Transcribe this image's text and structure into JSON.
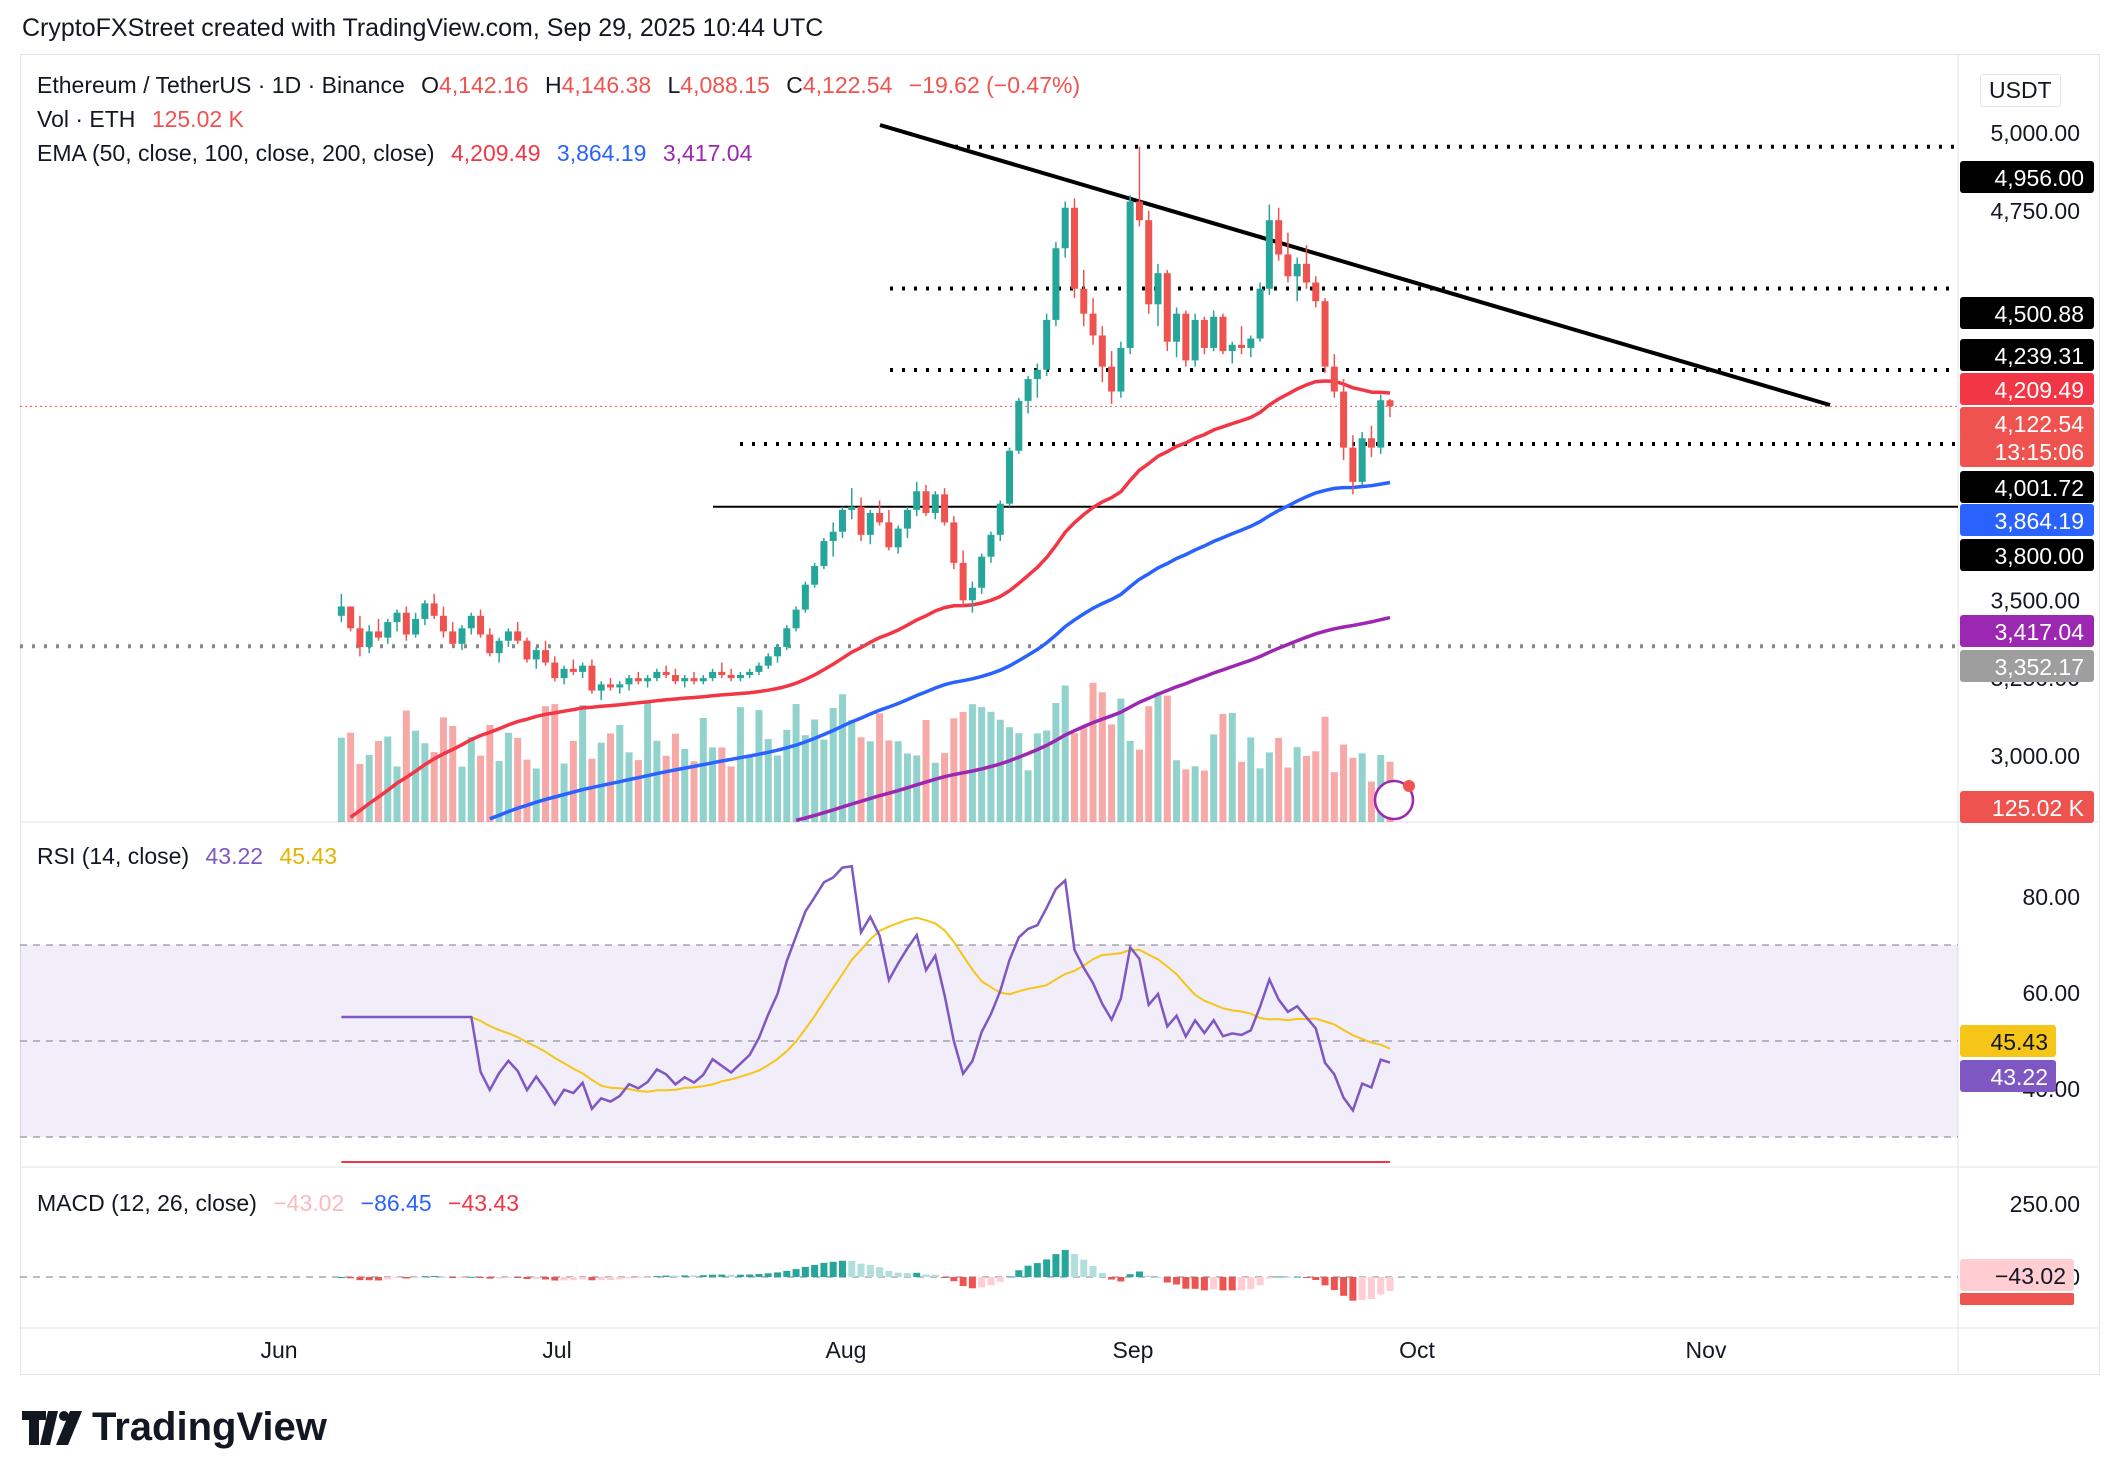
{
  "header": {
    "credit": "CryptoFXStreet created with TradingView.com, Sep 29, 2025 10:44 UTC"
  },
  "legend": {
    "symbol": "Ethereum / TetherUS · 1D · Binance",
    "o_label": "O",
    "o": "4,142.16",
    "h_label": "H",
    "h": "4,146.38",
    "l_label": "L",
    "l": "4,088.15",
    "c_label": "C",
    "c": "4,122.54",
    "change": "−19.62 (−0.47%)",
    "vol_label": "Vol · ETH",
    "vol": "125.02 K",
    "ema_label": "EMA (50, close, 100, close, 200, close)",
    "ema50": "4,209.49",
    "ema100": "3,864.19",
    "ema200": "3,417.04"
  },
  "currency": "USDT",
  "colors": {
    "up": "#26a69a",
    "down": "#ef5350",
    "ema50": "#f23645",
    "ema100": "#2962ff",
    "ema200": "#9c27b0",
    "rsi": "#7e57c2",
    "rsi_ma": "#f5c518"
  },
  "price_axis": {
    "ticks": [
      "5,000.00",
      "4,750.00",
      "3,500.00",
      "3,250.00",
      "3,000.00"
    ]
  },
  "price_tags": [
    {
      "text": "4,956.00",
      "bg": "#000000",
      "fg": "#ffffff"
    },
    {
      "text": "4,500.88",
      "bg": "#000000",
      "fg": "#ffffff"
    },
    {
      "text": "4,239.31",
      "bg": "#000000",
      "fg": "#ffffff"
    },
    {
      "text": "4,209.49",
      "bg": "#f23645",
      "fg": "#ffffff"
    },
    {
      "text": "4,122.54",
      "bg": "#ef5350",
      "fg": "#ffffff"
    },
    {
      "text": "13:15:06",
      "bg": "#ef5350",
      "fg": "#ffffff"
    },
    {
      "text": "4,001.72",
      "bg": "#000000",
      "fg": "#ffffff"
    },
    {
      "text": "3,864.19",
      "bg": "#2962ff",
      "fg": "#ffffff"
    },
    {
      "text": "3,800.00",
      "bg": "#000000",
      "fg": "#ffffff"
    },
    {
      "text": "3,417.04",
      "bg": "#9c27b0",
      "fg": "#ffffff"
    },
    {
      "text": "3,352.17",
      "bg": "#9e9e9e",
      "fg": "#ffffff"
    },
    {
      "text": "125.02 K",
      "bg": "#ef5350",
      "fg": "#ffffff"
    }
  ],
  "rsi": {
    "label": "RSI (14, close)",
    "value": "43.22",
    "ma": "45.43",
    "ticks": [
      "80.00",
      "60.00",
      "40.00"
    ]
  },
  "macd": {
    "label": "MACD (12, 26, close)",
    "hist": "−43.02",
    "macd": "−86.45",
    "signal": "−43.43",
    "ticks": [
      "250.00",
      "0.00"
    ],
    "tag": "−43.02"
  },
  "time_axis": [
    "Jun",
    "Jul",
    "Aug",
    "Sep",
    "Oct",
    "Nov"
  ],
  "footer": {
    "brand": "TradingView"
  },
  "chart_data": {
    "type": "candlestick",
    "symbol": "ETH/USDT",
    "interval": "1D",
    "ylim": [
      2800,
      5050
    ],
    "horizontal_levels": [
      4956.0,
      4500.88,
      4239.31,
      4001.72,
      3800.0,
      3352.17
    ],
    "trendline": [
      {
        "x": "2025-07-31",
        "y": 5100
      },
      {
        "x": "2025-10-30",
        "y": 4180
      }
    ],
    "ema50_end": 4209.49,
    "ema100_end": 3864.19,
    "ema200_end": 3417.04,
    "last_close": 4122.54,
    "candles": [
      [
        3450,
        3520,
        3430,
        3480
      ],
      [
        3480,
        3470,
        3400,
        3410
      ],
      [
        3410,
        3450,
        3320,
        3350
      ],
      [
        3350,
        3420,
        3330,
        3400
      ],
      [
        3400,
        3440,
        3370,
        3380
      ],
      [
        3380,
        3440,
        3360,
        3430
      ],
      [
        3430,
        3470,
        3400,
        3460
      ],
      [
        3460,
        3480,
        3370,
        3390
      ],
      [
        3390,
        3460,
        3380,
        3440
      ],
      [
        3440,
        3500,
        3420,
        3490
      ],
      [
        3490,
        3520,
        3440,
        3450
      ],
      [
        3450,
        3480,
        3380,
        3400
      ],
      [
        3400,
        3430,
        3350,
        3360
      ],
      [
        3360,
        3420,
        3340,
        3410
      ],
      [
        3410,
        3460,
        3390,
        3450
      ],
      [
        3450,
        3470,
        3380,
        3390
      ],
      [
        3390,
        3410,
        3320,
        3330
      ],
      [
        3330,
        3380,
        3300,
        3370
      ],
      [
        3370,
        3410,
        3350,
        3400
      ],
      [
        3400,
        3430,
        3360,
        3370
      ],
      [
        3370,
        3380,
        3300,
        3310
      ],
      [
        3310,
        3350,
        3280,
        3340
      ],
      [
        3340,
        3370,
        3290,
        3300
      ],
      [
        3300,
        3320,
        3240,
        3250
      ],
      [
        3250,
        3290,
        3230,
        3280
      ],
      [
        3280,
        3310,
        3260,
        3270
      ],
      [
        3270,
        3300,
        3250,
        3290
      ],
      [
        3290,
        3310,
        3200,
        3210
      ],
      [
        3210,
        3240,
        3180,
        3230
      ],
      [
        3230,
        3250,
        3210,
        3220
      ],
      [
        3220,
        3240,
        3200,
        3230
      ],
      [
        3230,
        3260,
        3210,
        3250
      ],
      [
        3250,
        3270,
        3230,
        3240
      ],
      [
        3240,
        3260,
        3220,
        3250
      ],
      [
        3250,
        3280,
        3240,
        3270
      ],
      [
        3270,
        3290,
        3250,
        3260
      ],
      [
        3260,
        3280,
        3230,
        3240
      ],
      [
        3240,
        3260,
        3220,
        3250
      ],
      [
        3250,
        3270,
        3230,
        3240
      ],
      [
        3240,
        3260,
        3230,
        3250
      ],
      [
        3250,
        3280,
        3240,
        3270
      ],
      [
        3270,
        3300,
        3250,
        3260
      ],
      [
        3260,
        3280,
        3240,
        3250
      ],
      [
        3250,
        3270,
        3240,
        3260
      ],
      [
        3260,
        3280,
        3250,
        3270
      ],
      [
        3270,
        3300,
        3260,
        3290
      ],
      [
        3290,
        3330,
        3280,
        3320
      ],
      [
        3320,
        3360,
        3300,
        3350
      ],
      [
        3350,
        3420,
        3340,
        3410
      ],
      [
        3410,
        3480,
        3400,
        3470
      ],
      [
        3470,
        3560,
        3460,
        3550
      ],
      [
        3550,
        3620,
        3540,
        3610
      ],
      [
        3610,
        3700,
        3600,
        3690
      ],
      [
        3690,
        3750,
        3640,
        3720
      ],
      [
        3720,
        3800,
        3700,
        3790
      ],
      [
        3790,
        3860,
        3760,
        3800
      ],
      [
        3800,
        3830,
        3690,
        3710
      ],
      [
        3710,
        3790,
        3680,
        3780
      ],
      [
        3780,
        3820,
        3740,
        3750
      ],
      [
        3750,
        3790,
        3660,
        3670
      ],
      [
        3670,
        3740,
        3650,
        3730
      ],
      [
        3730,
        3800,
        3700,
        3790
      ],
      [
        3790,
        3880,
        3770,
        3850
      ],
      [
        3850,
        3870,
        3770,
        3780
      ],
      [
        3780,
        3850,
        3760,
        3840
      ],
      [
        3840,
        3860,
        3740,
        3750
      ],
      [
        3750,
        3770,
        3600,
        3620
      ],
      [
        3620,
        3660,
        3480,
        3500
      ],
      [
        3500,
        3560,
        3460,
        3540
      ],
      [
        3540,
        3650,
        3520,
        3640
      ],
      [
        3640,
        3720,
        3620,
        3710
      ],
      [
        3710,
        3820,
        3690,
        3810
      ],
      [
        3810,
        3990,
        3800,
        3980
      ],
      [
        3980,
        4150,
        3970,
        4140
      ],
      [
        4140,
        4220,
        4100,
        4210
      ],
      [
        4210,
        4260,
        4150,
        4240
      ],
      [
        4240,
        4420,
        4220,
        4400
      ],
      [
        4400,
        4650,
        4380,
        4630
      ],
      [
        4630,
        4780,
        4600,
        4760
      ],
      [
        4760,
        4790,
        4470,
        4500
      ],
      [
        4500,
        4560,
        4380,
        4420
      ],
      [
        4420,
        4470,
        4320,
        4350
      ],
      [
        4350,
        4380,
        4200,
        4250
      ],
      [
        4250,
        4300,
        4130,
        4170
      ],
      [
        4170,
        4330,
        4150,
        4310
      ],
      [
        4310,
        4800,
        4290,
        4780
      ],
      [
        4780,
        4956,
        4700,
        4720
      ],
      [
        4720,
        4750,
        4420,
        4450
      ],
      [
        4450,
        4580,
        4380,
        4550
      ],
      [
        4550,
        4560,
        4300,
        4330
      ],
      [
        4330,
        4440,
        4280,
        4420
      ],
      [
        4420,
        4430,
        4250,
        4270
      ],
      [
        4270,
        4420,
        4250,
        4400
      ],
      [
        4400,
        4410,
        4290,
        4310
      ],
      [
        4310,
        4430,
        4300,
        4410
      ],
      [
        4410,
        4420,
        4290,
        4300
      ],
      [
        4300,
        4330,
        4260,
        4320
      ],
      [
        4320,
        4380,
        4290,
        4310
      ],
      [
        4310,
        4350,
        4280,
        4340
      ],
      [
        4340,
        4520,
        4330,
        4500
      ],
      [
        4500,
        4770,
        4480,
        4720
      ],
      [
        4720,
        4760,
        4590,
        4610
      ],
      [
        4610,
        4680,
        4520,
        4540
      ],
      [
        4540,
        4600,
        4460,
        4580
      ],
      [
        4580,
        4640,
        4500,
        4520
      ],
      [
        4520,
        4540,
        4440,
        4460
      ],
      [
        4460,
        4470,
        4230,
        4250
      ],
      [
        4250,
        4290,
        4150,
        4170
      ],
      [
        4170,
        4210,
        3950,
        3990
      ],
      [
        3990,
        4030,
        3840,
        3880
      ],
      [
        3880,
        4040,
        3870,
        4020
      ],
      [
        4020,
        4060,
        3960,
        3990
      ],
      [
        3990,
        4160,
        3970,
        4142
      ],
      [
        4142,
        4146.38,
        4088.15,
        4122.54
      ]
    ]
  }
}
